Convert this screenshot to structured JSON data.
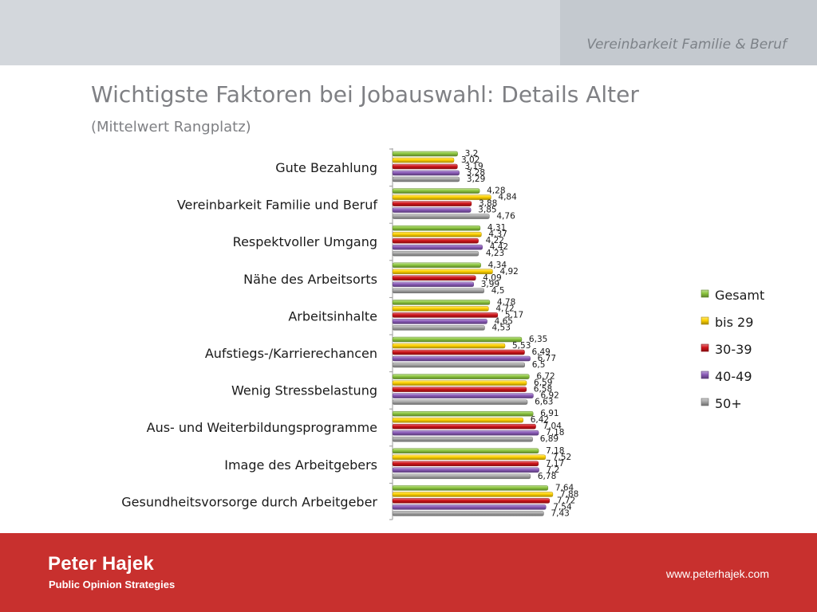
{
  "header": {
    "section_label": "Vereinbarkeit Familie & Beruf"
  },
  "footer": {
    "brand_name": "Peter Hajek",
    "brand_sub": "Public Opinion Strategies",
    "url": "www.peterhajek.com"
  },
  "colors": {
    "Gesamt": "#8cc63f",
    "bis 29": "#ffd200",
    "30-39": "#d0141a",
    "40-49": "#8a5bb8",
    "50+": "#a6a6a6"
  },
  "chart_data": {
    "type": "bar",
    "orientation": "horizontal",
    "title": "Wichtigste Faktoren bei Jobauswahl: Details Alter",
    "subtitle": "(Mittelwert Rangplatz)",
    "categories": [
      "Gute Bezahlung",
      "Vereinbarkeit Familie und Beruf",
      "Respektvoller Umgang",
      "Nähe des Arbeitsorts",
      "Arbeitsinhalte",
      "Aufstiegs-/Karrierechancen",
      "Wenig Stressbelastung",
      "Aus- und Weiterbildungsprogramme",
      "Image des Arbeitgebers",
      "Gesundheitsvorsorge durch Arbeitgeber"
    ],
    "series": [
      {
        "name": "Gesamt",
        "values": [
          3.2,
          4.28,
          4.31,
          4.34,
          4.78,
          6.35,
          6.72,
          6.91,
          7.18,
          7.64
        ],
        "labels": [
          "3,2",
          "4,28",
          "4,31",
          "4,34",
          "4,78",
          "6,35",
          "6,72",
          "6,91",
          "7,18",
          "7,64"
        ]
      },
      {
        "name": "bis 29",
        "values": [
          3.02,
          4.84,
          4.37,
          4.92,
          4.72,
          5.53,
          6.59,
          6.42,
          7.52,
          7.88
        ],
        "labels": [
          "3,02",
          "4,84",
          "4,37",
          "4,92",
          "4,72",
          "5,53",
          "6,59",
          "6,42",
          "7,52",
          "7,88"
        ]
      },
      {
        "name": "30-39",
        "values": [
          3.19,
          3.88,
          4.22,
          4.09,
          5.17,
          6.49,
          6.58,
          7.04,
          7.17,
          7.72
        ],
        "labels": [
          "3,19",
          "3,88",
          "4,22",
          "4,09",
          "5,17",
          "6,49",
          "6,58",
          "7,04",
          "7,17",
          "7,72"
        ]
      },
      {
        "name": "40-49",
        "values": [
          3.28,
          3.85,
          4.42,
          3.99,
          4.65,
          6.77,
          6.92,
          7.18,
          7.2,
          7.54
        ],
        "labels": [
          "3,28",
          "3,85",
          "4,42",
          "3,99",
          "4,65",
          "6,77",
          "6,92",
          "7,18",
          "7,2",
          "7,54"
        ]
      },
      {
        "name": "50+",
        "values": [
          3.29,
          4.76,
          4.23,
          4.5,
          4.53,
          6.5,
          6.63,
          6.89,
          6.78,
          7.43
        ],
        "labels": [
          "3,29",
          "4,76",
          "4,23",
          "4,5",
          "4,53",
          "6,5",
          "6,63",
          "6,89",
          "6,78",
          "7,43"
        ]
      }
    ],
    "xlim": [
      0,
      8
    ],
    "grid": false,
    "legend_position": "right"
  }
}
